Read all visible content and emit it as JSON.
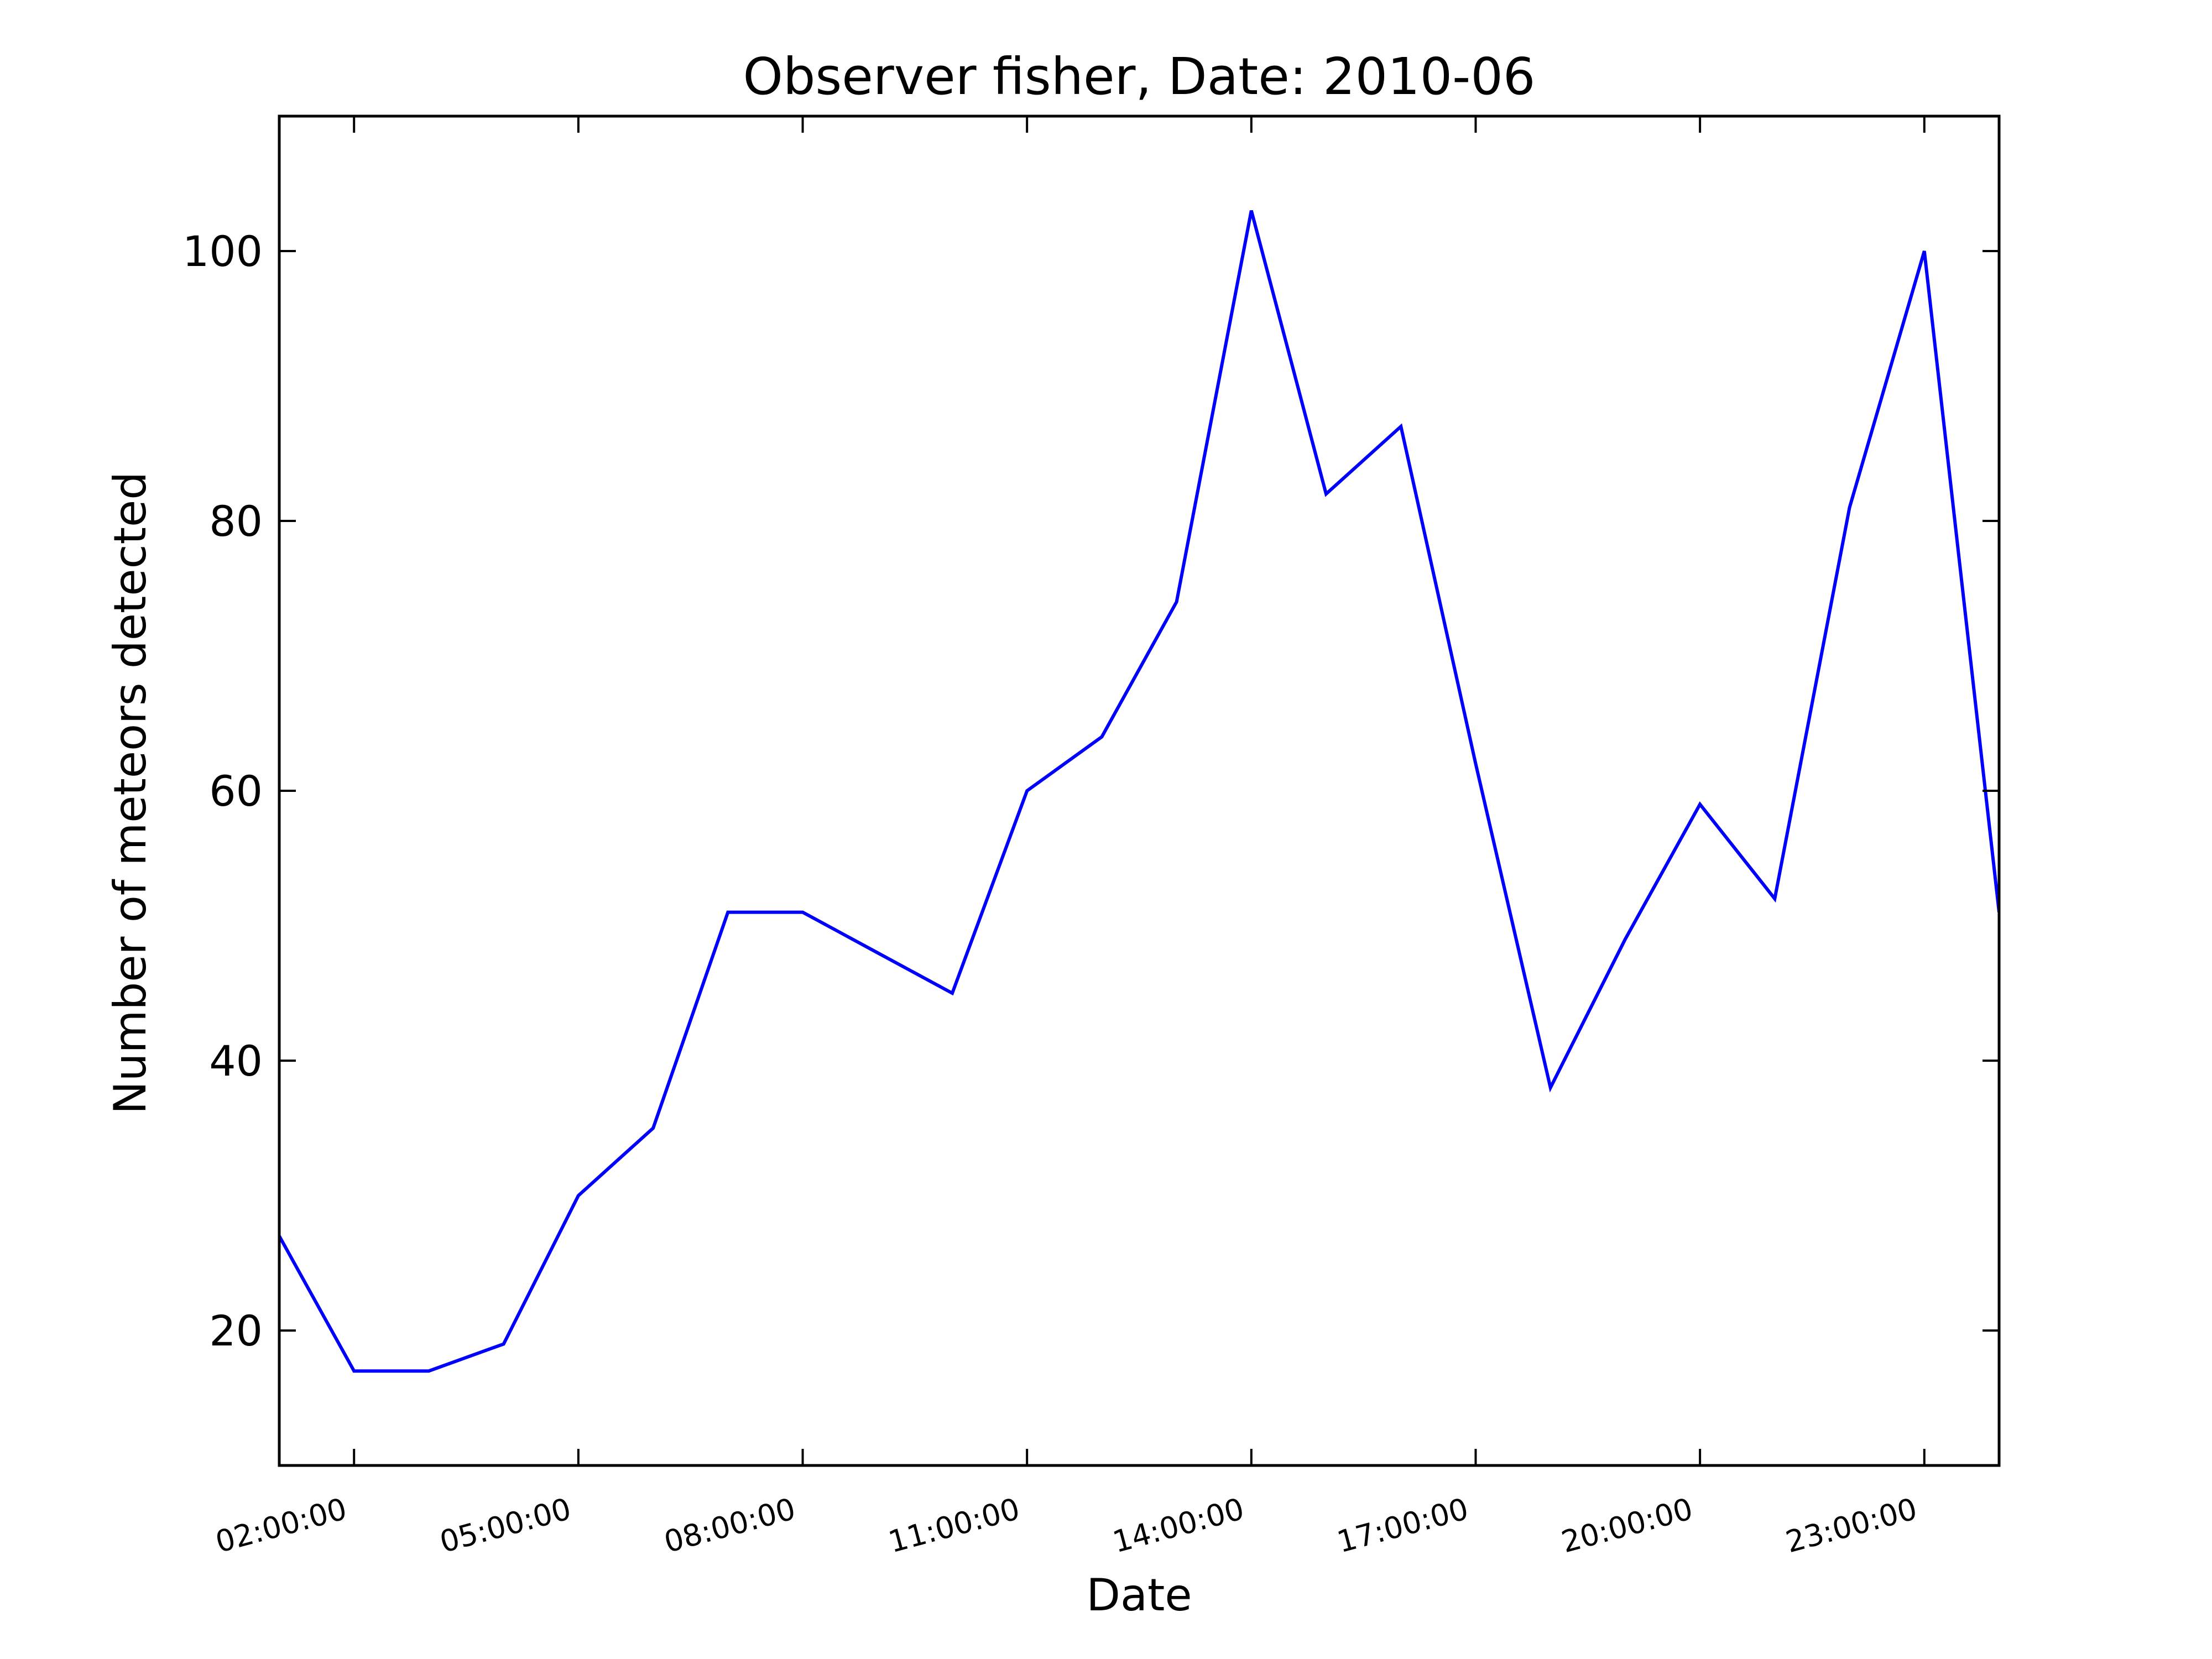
{
  "chart_data": {
    "type": "line",
    "title": "Observer fisher, Date: 2010-06",
    "xlabel": "Date",
    "ylabel": "Number of meteors detected",
    "x_hours": [
      1,
      2,
      3,
      4,
      5,
      6,
      7,
      8,
      9,
      10,
      11,
      12,
      13,
      14,
      15,
      16,
      17,
      18,
      19,
      20,
      21,
      22,
      23,
      24
    ],
    "xlim_hours": [
      1,
      24
    ],
    "xticks": [
      {
        "hour": 2,
        "label": "02:00:00"
      },
      {
        "hour": 5,
        "label": "05:00:00"
      },
      {
        "hour": 8,
        "label": "08:00:00"
      },
      {
        "hour": 11,
        "label": "11:00:00"
      },
      {
        "hour": 14,
        "label": "14:00:00"
      },
      {
        "hour": 17,
        "label": "17:00:00"
      },
      {
        "hour": 20,
        "label": "20:00:00"
      },
      {
        "hour": 23,
        "label": "23:00:00"
      }
    ],
    "yticks": [
      20,
      40,
      60,
      80,
      100
    ],
    "ylim": [
      10,
      110
    ],
    "series": [
      {
        "color": "#0000ff",
        "values": [
          27,
          17,
          17,
          19,
          30,
          35,
          51,
          51,
          48,
          45,
          60,
          64,
          74,
          103,
          82,
          87,
          62,
          38,
          49,
          59,
          52,
          81,
          100,
          51
        ]
      }
    ],
    "grid": false,
    "legend": "none"
  }
}
